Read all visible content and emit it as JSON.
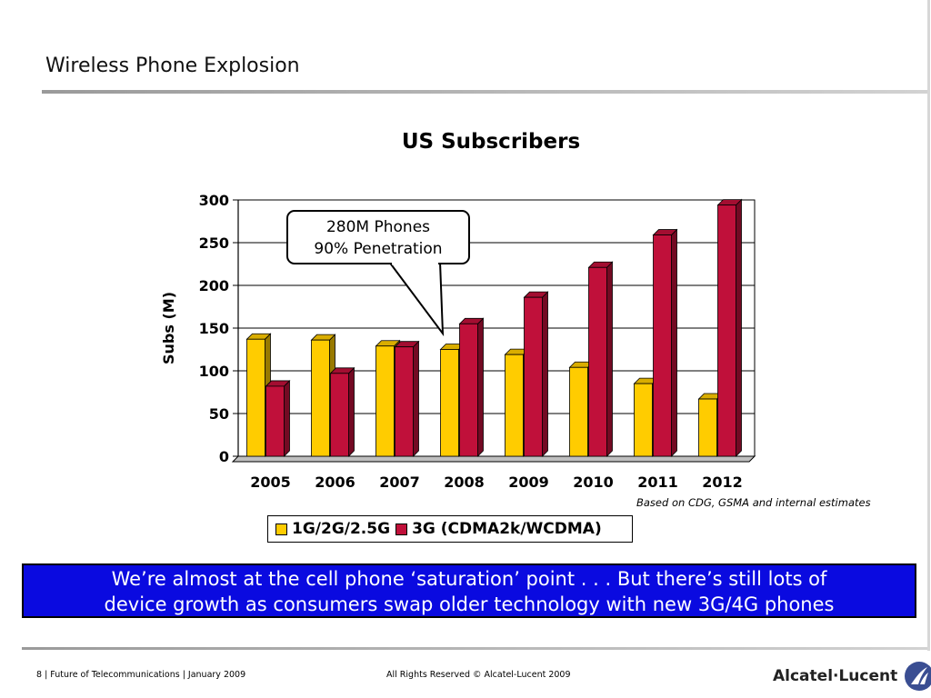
{
  "slide": {
    "title": "Wireless Phone Explosion"
  },
  "chart_data": {
    "type": "bar",
    "title": "US Subscribers",
    "xlabel": "",
    "ylabel": "Subs (M)",
    "ylim": [
      0,
      300
    ],
    "yticks": [
      "300",
      "250",
      "200",
      "150",
      "100",
      "50",
      "0"
    ],
    "yticks_values": [
      300,
      250,
      200,
      150,
      100,
      50,
      0
    ],
    "categories": [
      "2005",
      "2006",
      "2007",
      "2008",
      "2009",
      "2010",
      "2011",
      "2012"
    ],
    "series": [
      {
        "name": "1G/2G/2.5G",
        "values": [
          137,
          136,
          129,
          125,
          119,
          104,
          85,
          67
        ],
        "color": "#FFCC00"
      },
      {
        "name": "3G (CDMA2k/WCDMA)",
        "values": [
          82,
          97,
          128,
          155,
          186,
          221,
          259,
          294
        ],
        "color": "#C0103A"
      }
    ],
    "grid": true,
    "legend_position": "bottom",
    "annotation": {
      "line1": "280M Phones",
      "line2": "90% Penetration",
      "points_to": "2008"
    }
  },
  "source_note": "Based on CDG, GSMA and internal estimates",
  "callout": {
    "line1": "We’re almost at the cell phone ‘saturation’ point . . . But there’s still lots of",
    "line2": "device growth as consumers swap older technology with new 3G/4G phones"
  },
  "footer": {
    "left": "8 | Future of Telecommunications | January 2009",
    "center": "All Rights Reserved © Alcatel-Lucent 2009",
    "logo_text": "Alcatel·Lucent"
  },
  "colors": {
    "accent_blue": "#0a0ae0",
    "series1": "#FFCC00",
    "series2": "#C0103A"
  }
}
